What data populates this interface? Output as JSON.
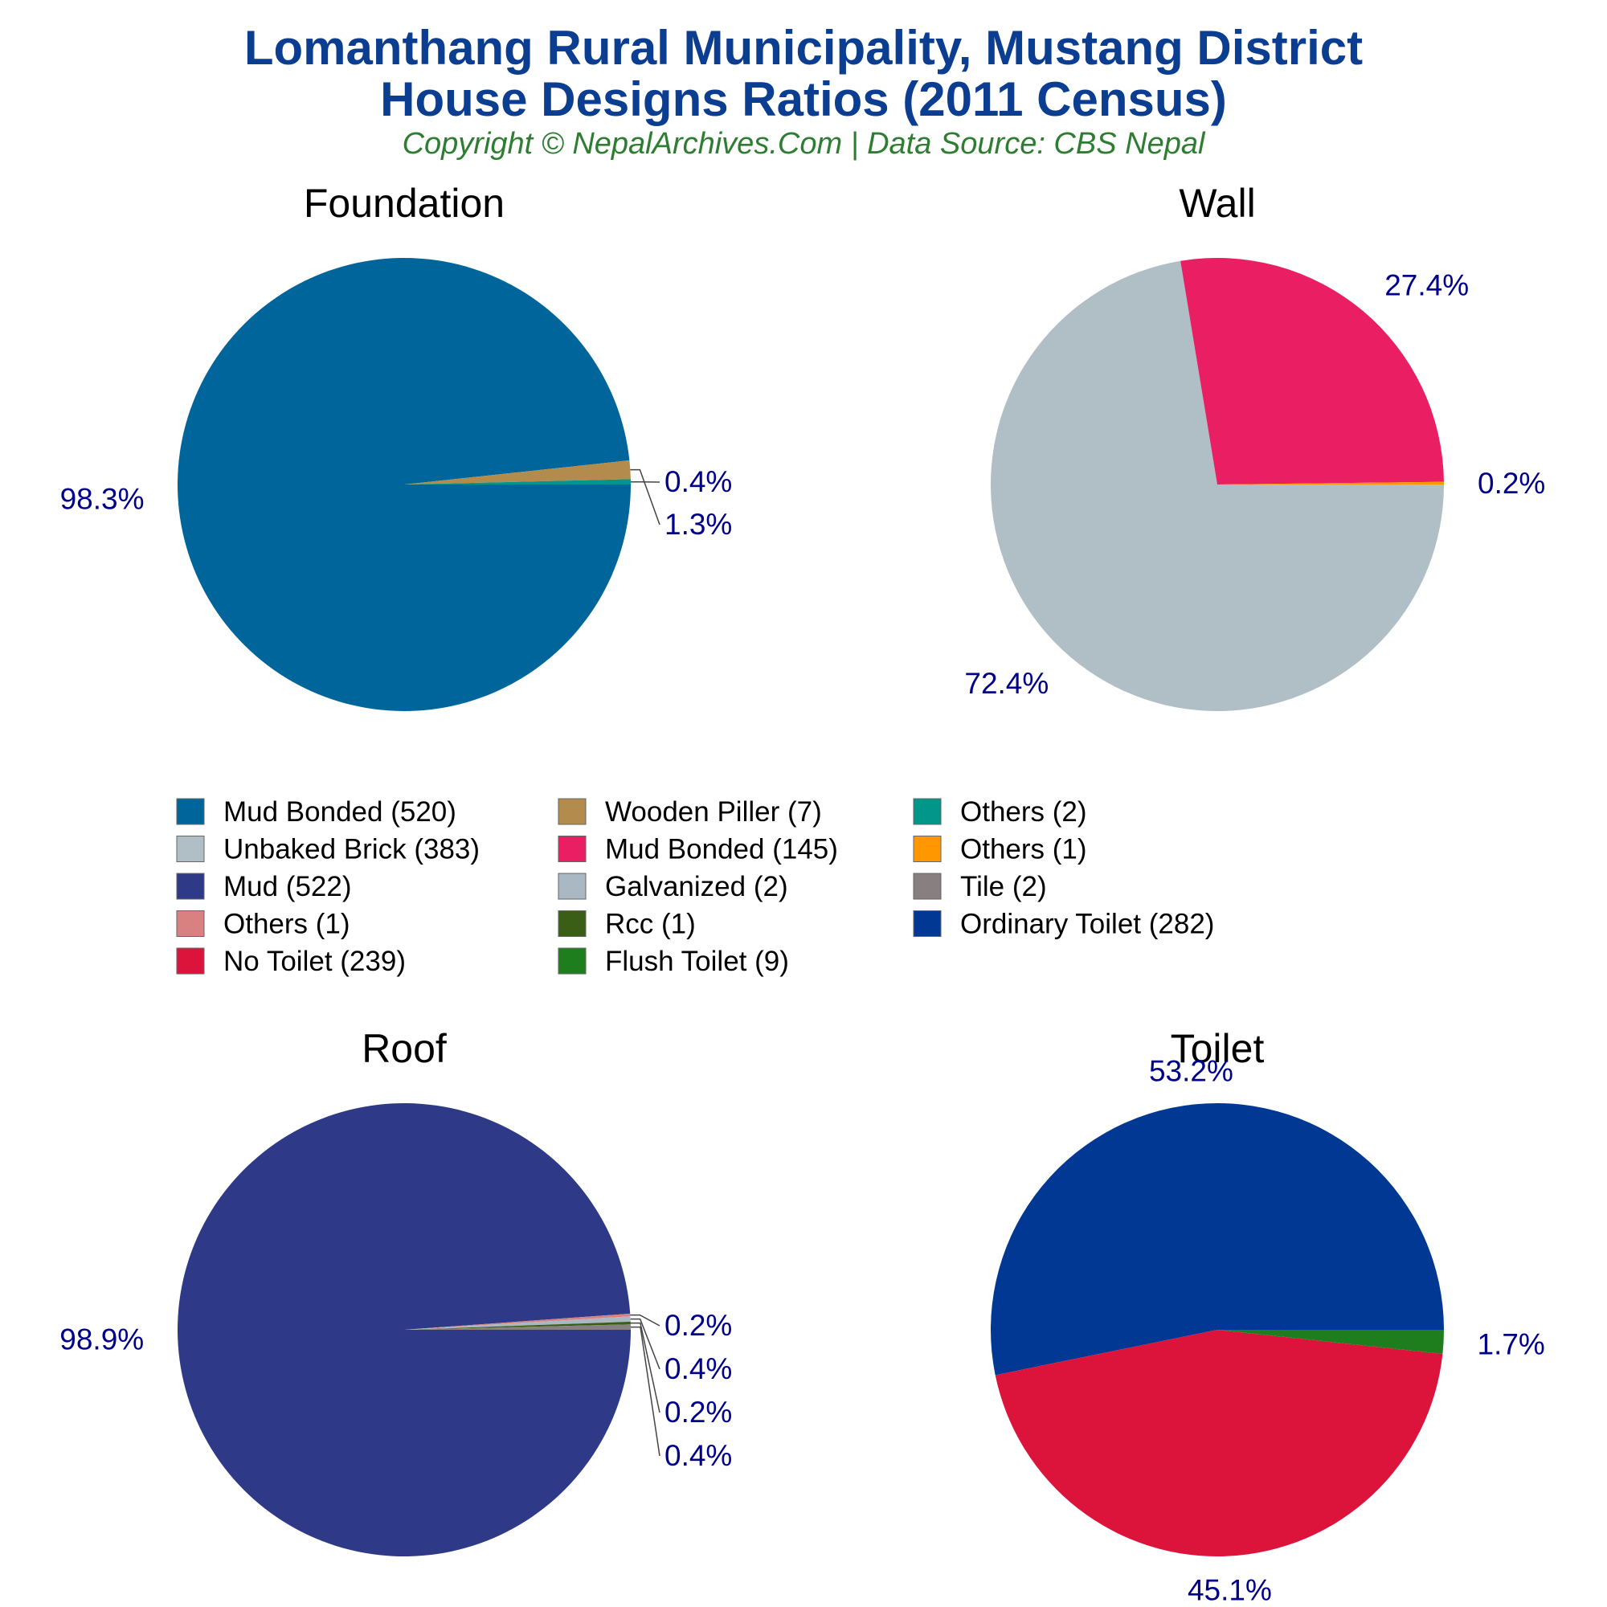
{
  "title_line1": "Lomanthang Rural Municipality, Mustang District",
  "title_line2": "House Designs Ratios (2011 Census)",
  "subtitle": "Copyright © NepalArchives.Com | Data Source: CBS Nepal",
  "legend": [
    "Mud Bonded (520)",
    "Unbaked Brick (383)",
    "Mud (522)",
    "Others (1)",
    "No Toilet (239)",
    "Wooden Piller (7)",
    "Mud Bonded (145)",
    "Galvanized (2)",
    "Rcc (1)",
    "Flush Toilet (9)",
    "Others (2)",
    "Others (1)",
    "Tile (2)",
    "Ordinary Toilet (282)"
  ],
  "legend_colors": [
    "#00659a",
    "#b0bec5",
    "#2e3a87",
    "#d98080",
    "#dc143c",
    "#b38b4d",
    "#e91e63",
    "#a9b8c2",
    "#3b5e16",
    "#1e7e1e",
    "#00968a",
    "#ff9800",
    "#888080",
    "#003893"
  ],
  "chart_data": [
    {
      "type": "pie",
      "title": "Foundation",
      "categories": [
        "Mud Bonded",
        "Wooden Piller",
        "Others"
      ],
      "values": [
        520,
        7,
        2
      ],
      "percent_labels": [
        "98.3%",
        "1.3%",
        "0.4%"
      ],
      "colors": [
        "#00659a",
        "#b38b4d",
        "#00968a"
      ]
    },
    {
      "type": "pie",
      "title": "Wall",
      "categories": [
        "Unbaked Brick",
        "Mud Bonded",
        "Others"
      ],
      "values": [
        383,
        145,
        1
      ],
      "percent_labels": [
        "72.4%",
        "27.4%",
        "0.2%"
      ],
      "colors": [
        "#b0bec5",
        "#e91e63",
        "#ff9800"
      ]
    },
    {
      "type": "pie",
      "title": "Roof",
      "categories": [
        "Mud",
        "Others",
        "Galvanized",
        "Rcc",
        "Tile"
      ],
      "values": [
        522,
        1,
        2,
        1,
        2
      ],
      "percent_labels": [
        "98.9%",
        "0.2%",
        "0.4%",
        "0.2%",
        "0.4%"
      ],
      "colors": [
        "#2e3a87",
        "#d98080",
        "#a9b8c2",
        "#3b5e16",
        "#888080"
      ]
    },
    {
      "type": "pie",
      "title": "Toilet",
      "categories": [
        "Ordinary Toilet",
        "No Toilet",
        "Flush Toilet"
      ],
      "values": [
        282,
        239,
        9
      ],
      "percent_labels": [
        "53.2%",
        "45.1%",
        "1.7%"
      ],
      "colors": [
        "#003893",
        "#dc143c",
        "#1e7e1e"
      ]
    }
  ]
}
